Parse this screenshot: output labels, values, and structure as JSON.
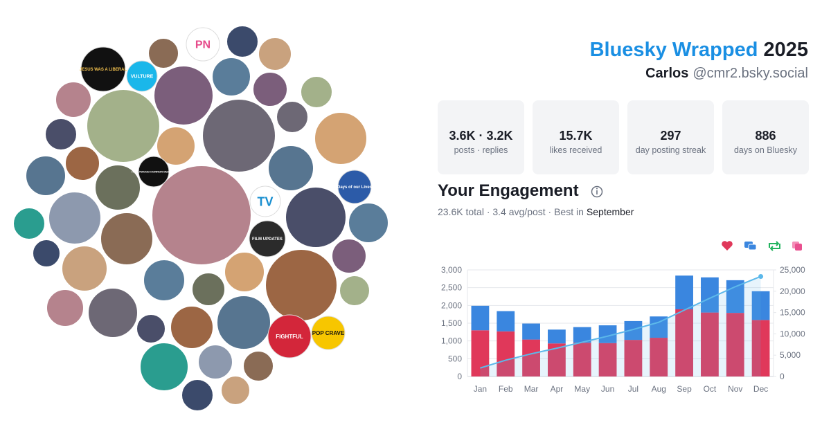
{
  "header": {
    "title": "Bluesky Wrapped",
    "year": "2025",
    "name": "Carlos",
    "handle": "@cmr2.bsky.social"
  },
  "stats": [
    {
      "value": "3.6K · 3.2K",
      "label": "posts · replies"
    },
    {
      "value": "15.7K",
      "label": "likes received"
    },
    {
      "value": "297",
      "label": "day posting streak"
    },
    {
      "value": "886",
      "label": "days on Bluesky"
    }
  ],
  "avatar_labels": [
    "VULTURE",
    "TV",
    "POP CRAVE",
    "PN",
    "Days of our Lives",
    "FILM UPDATES",
    "HOLLYWOOD HORROR MUSEUM",
    "JESUS WAS A LIBERAL",
    "FIGHTFUL"
  ],
  "engagement": {
    "title": "Your Engagement",
    "summary": "23.6K total · 3.4 avg/post · Best in",
    "best_month": "September"
  },
  "chart_data": {
    "type": "bar",
    "stacked": true,
    "grid": true,
    "categories": [
      "Jan",
      "Feb",
      "Mar",
      "Apr",
      "May",
      "Jun",
      "Jul",
      "Aug",
      "Sep",
      "Oct",
      "Nov",
      "Dec"
    ],
    "series": [
      {
        "color": "#e0385a",
        "values": [
          1300,
          1270,
          1040,
          930,
          950,
          940,
          1030,
          1090,
          1890,
          1800,
          1790,
          1590
        ]
      },
      {
        "color": "#3a86df",
        "values": [
          690,
          570,
          450,
          390,
          440,
          500,
          530,
          600,
          950,
          990,
          920,
          810
        ]
      },
      {
        "type": "line",
        "axis": "y2",
        "color": "#5cb8ea",
        "values": [
          1990,
          3830,
          5320,
          6640,
          8030,
          9470,
          11030,
          12720,
          15560,
          18350,
          21060,
          23460
        ]
      }
    ],
    "ylim": [
      0,
      3000
    ],
    "yticks": [
      0,
      500,
      {
        "value": 1000,
        "label": "1,000"
      },
      {
        "value": 1500,
        "label": "1,500"
      },
      {
        "value": 2000,
        "label": "2,000"
      },
      {
        "value": 2500,
        "label": "2,500"
      },
      {
        "value": 3000,
        "label": "3,000"
      }
    ],
    "y2lim": [
      0,
      25000
    ],
    "y2ticks": [
      0,
      {
        "value": 5000,
        "label": "5,000"
      },
      {
        "value": 10000,
        "label": "10,000"
      },
      {
        "value": 15000,
        "label": "15,000"
      },
      {
        "value": 20000,
        "label": "20,000"
      },
      {
        "value": 25000,
        "label": "25,000"
      }
    ]
  }
}
